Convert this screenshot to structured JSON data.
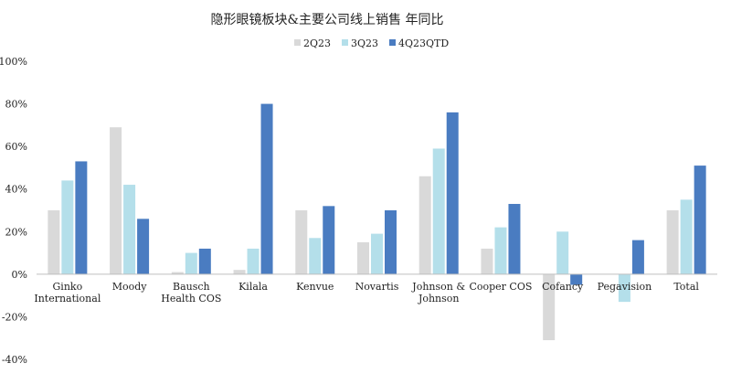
{
  "chart_data": {
    "type": "bar",
    "title": "隐形眼镜板块&主要公司线上销售 年同比",
    "categories": [
      [
        "Ginko",
        "International"
      ],
      [
        "Moody"
      ],
      [
        "Bausch",
        "Health COS"
      ],
      [
        "Kilala"
      ],
      [
        "Kenvue"
      ],
      [
        "Novartis"
      ],
      [
        "Johnson &",
        "Johnson"
      ],
      [
        "Cooper COS"
      ],
      [
        "Cofancy"
      ],
      [
        "Pegavision"
      ],
      [
        "Total"
      ]
    ],
    "series": [
      {
        "name": "2Q23",
        "color": "#d9d9d9",
        "values": [
          0.3,
          0.69,
          0.01,
          0.02,
          0.3,
          0.15,
          0.46,
          0.12,
          -0.31,
          0.0,
          0.3
        ]
      },
      {
        "name": "3Q23",
        "color": "#b4dfea",
        "values": [
          0.44,
          0.42,
          0.1,
          0.12,
          0.17,
          0.19,
          0.59,
          0.22,
          0.2,
          -0.13,
          0.35
        ]
      },
      {
        "name": "4Q23QTD",
        "color": "#4a7cc1",
        "values": [
          0.53,
          0.26,
          0.12,
          0.8,
          0.32,
          0.3,
          0.76,
          0.33,
          -0.05,
          0.16,
          0.51
        ]
      }
    ],
    "ylim": [
      -0.4,
      1.0
    ],
    "yticks": [
      -0.4,
      -0.2,
      0.0,
      0.2,
      0.4,
      0.6,
      0.8,
      1.0
    ],
    "ytick_labels": [
      "-40%",
      "-20%",
      "0%",
      "20%",
      "40%",
      "60%",
      "80%",
      "100%"
    ],
    "xlabel": "",
    "ylabel": "",
    "grid": false,
    "legend_position": "top-center"
  }
}
